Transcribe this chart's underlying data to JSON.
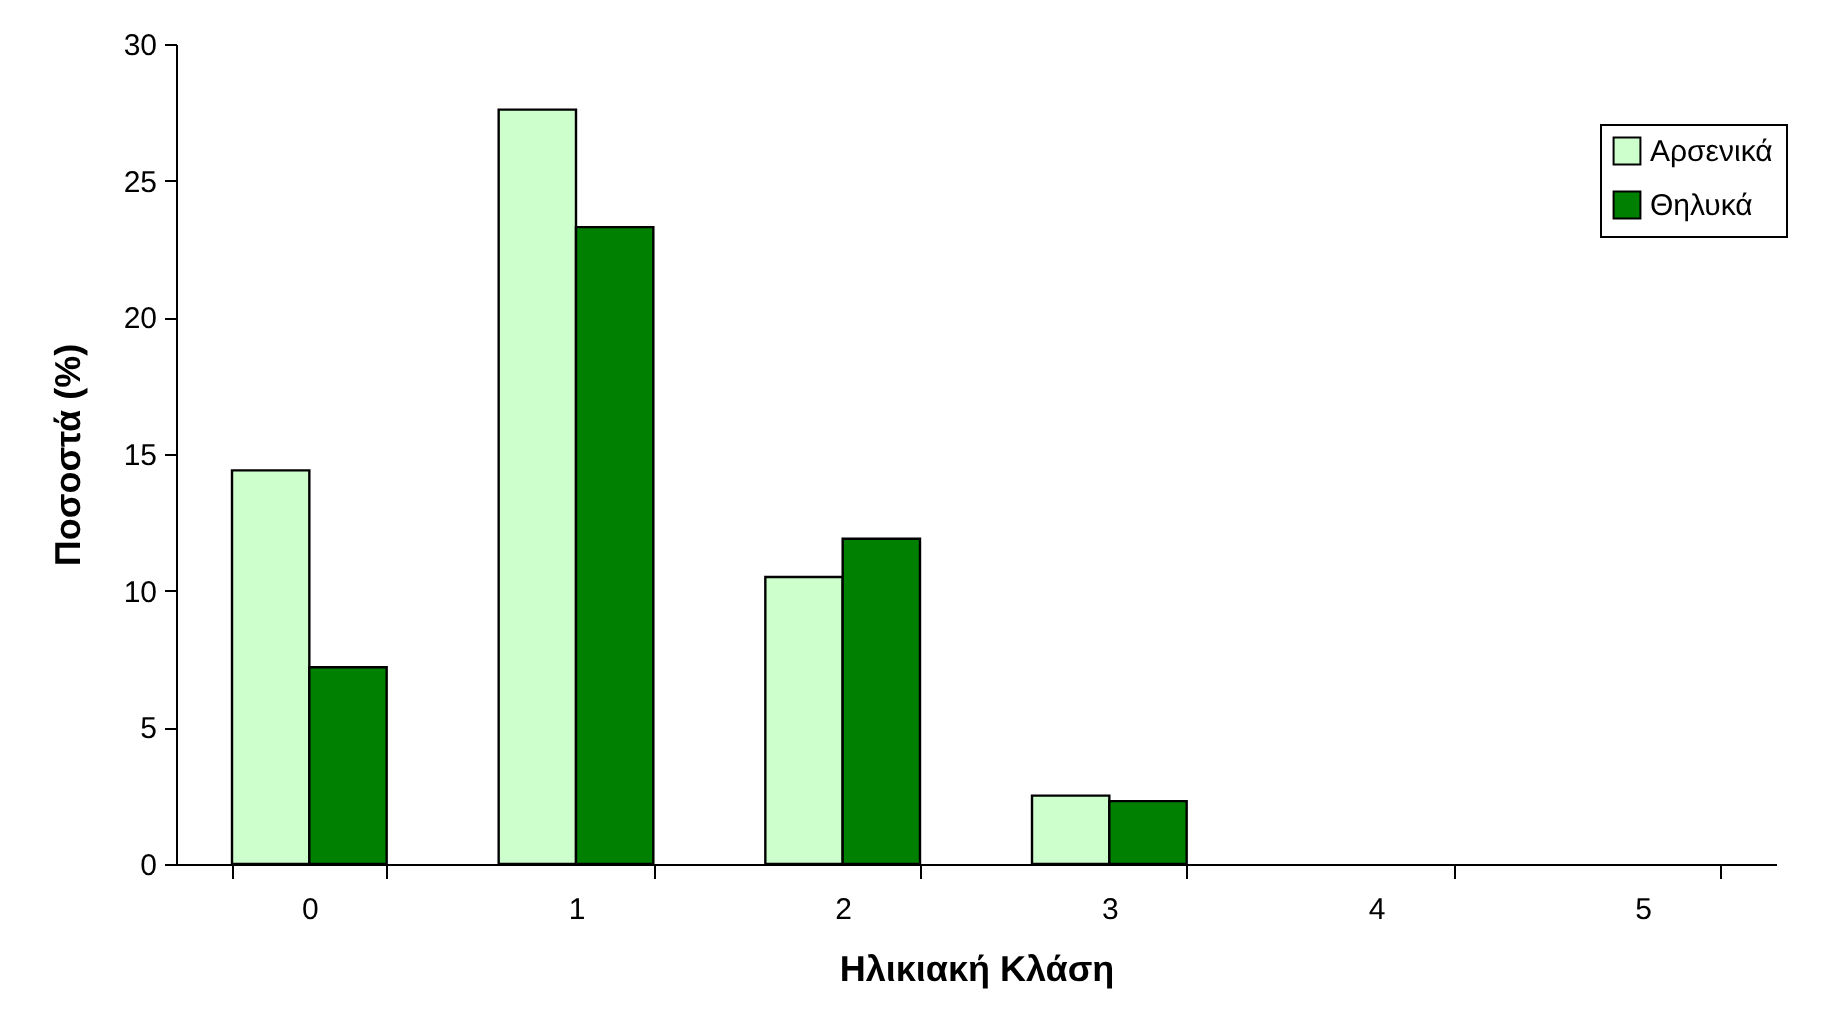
{
  "chart_data": {
    "type": "bar",
    "xlabel": "Ηλικιακή Κλάση",
    "ylabel": "Ποσοστά (%)",
    "categories": [
      "0",
      "1",
      "2",
      "3",
      "4",
      "5"
    ],
    "series": [
      {
        "name": "Αρσενικά",
        "color": "#ccffcc",
        "values": [
          14.4,
          27.6,
          10.5,
          2.5,
          null,
          null
        ]
      },
      {
        "name": "Θηλυκά",
        "color": "#008000",
        "values": [
          7.2,
          23.3,
          11.9,
          2.3,
          null,
          null
        ]
      }
    ],
    "ylim": [
      0,
      30
    ],
    "yticks": [
      0,
      5,
      10,
      15,
      20,
      25,
      30
    ],
    "grid": false,
    "legend": "top right"
  }
}
